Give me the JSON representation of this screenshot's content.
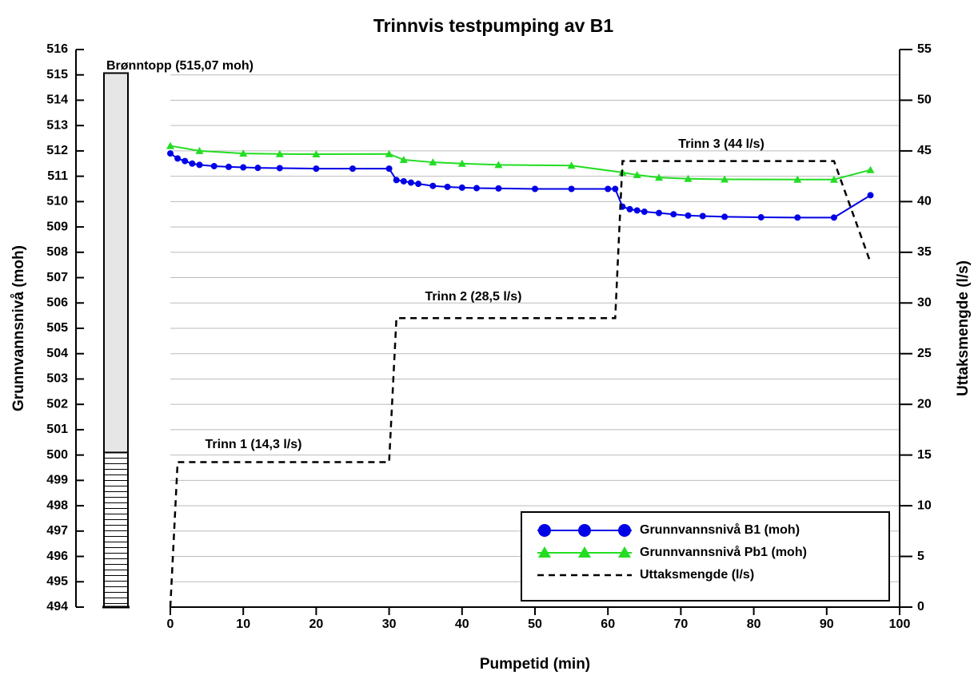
{
  "chart_data": {
    "type": "line",
    "title": "Trinnvis testpumping av B1",
    "xlabel": "Pumpetid (min)",
    "ylabel": "Grunnvannsnivå (moh)",
    "y2label": "Uttaksmengde (l/s)",
    "xlim": [
      0,
      100
    ],
    "xticks": [
      0,
      10,
      20,
      30,
      40,
      50,
      60,
      70,
      80,
      90,
      100
    ],
    "ylim": [
      494,
      516
    ],
    "yticks": [
      494,
      495,
      496,
      497,
      498,
      499,
      500,
      501,
      502,
      503,
      504,
      505,
      506,
      507,
      508,
      509,
      510,
      511,
      512,
      513,
      514,
      515,
      516
    ],
    "y2lim": [
      0,
      55
    ],
    "y2ticks": [
      0,
      5,
      10,
      15,
      20,
      25,
      30,
      35,
      40,
      45,
      50,
      55
    ],
    "grid": true,
    "legend": "lower right",
    "annotations": [
      "Trinn 1 (14,3 l/s)",
      "Trinn 2 (28,5 l/s)",
      "Trinn 3 (44 l/s)"
    ],
    "well": {
      "label": "Brønntopp (515,07 moh)",
      "top": 515.07,
      "screen_top": 500.1
    },
    "series": [
      {
        "name": "Grunnvannsnivå B1 (moh)",
        "color": "#0000e6",
        "marker": "circle",
        "x": [
          0,
          1,
          2,
          3,
          4,
          6,
          8,
          10,
          12,
          15,
          20,
          25,
          30,
          31,
          32,
          33,
          34,
          36,
          38,
          40,
          42,
          45,
          50,
          55,
          60,
          61,
          62,
          63,
          64,
          65,
          67,
          69,
          71,
          73,
          76,
          81,
          86,
          91,
          96
        ],
        "values": [
          511.9,
          511.7,
          511.6,
          511.5,
          511.45,
          511.4,
          511.37,
          511.35,
          511.33,
          511.32,
          511.3,
          511.3,
          511.3,
          510.85,
          510.8,
          510.75,
          510.7,
          510.62,
          510.58,
          510.55,
          510.53,
          510.52,
          510.5,
          510.5,
          510.5,
          510.5,
          509.8,
          509.7,
          509.65,
          509.6,
          509.55,
          509.5,
          509.45,
          509.43,
          509.4,
          509.38,
          509.37,
          509.37,
          510.25
        ]
      },
      {
        "name": "Grunnvannsnivå Pb1 (moh)",
        "color": "#22dd22",
        "marker": "triangle",
        "x": [
          0,
          4,
          10,
          15,
          20,
          30,
          32,
          36,
          40,
          45,
          55,
          62,
          64,
          67,
          71,
          76,
          86,
          91,
          96
        ],
        "values": [
          512.2,
          512.0,
          511.9,
          511.88,
          511.87,
          511.88,
          511.65,
          511.55,
          511.5,
          511.45,
          511.42,
          511.15,
          511.05,
          510.95,
          510.9,
          510.88,
          510.87,
          510.87,
          511.25
        ]
      },
      {
        "name": "Uttaksmengde (l/s)",
        "color": "#000000",
        "marker": "none",
        "dash": true,
        "axis": "y2",
        "x": [
          0,
          1,
          30,
          31,
          61,
          62,
          91,
          96
        ],
        "values": [
          0,
          14.3,
          14.3,
          28.5,
          28.5,
          44,
          44,
          34
        ]
      }
    ]
  }
}
